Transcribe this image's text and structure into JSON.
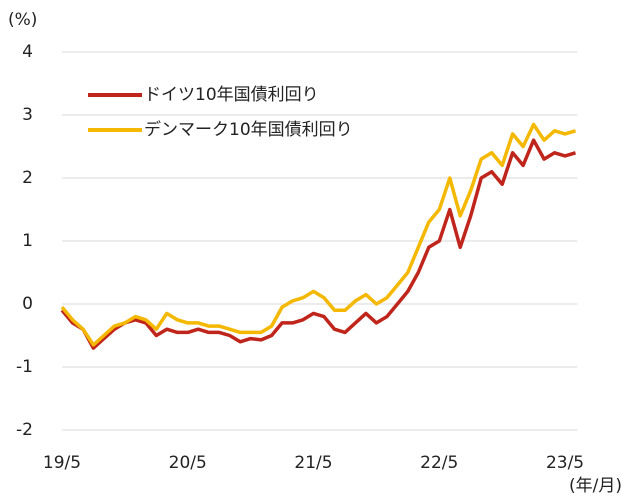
{
  "chart_data": {
    "type": "line",
    "y_label": "(%)",
    "x_label": "(年/月)",
    "categories": [
      "19/5",
      null,
      null,
      null,
      null,
      null,
      null,
      null,
      null,
      null,
      null,
      null,
      "20/5",
      null,
      null,
      null,
      null,
      null,
      null,
      null,
      null,
      null,
      null,
      null,
      "21/5",
      null,
      null,
      null,
      null,
      null,
      null,
      null,
      null,
      null,
      null,
      null,
      "22/5",
      null,
      null,
      null,
      null,
      null,
      null,
      null,
      null,
      null,
      null,
      null,
      "23/5",
      null
    ],
    "series": [
      {
        "name": "ドイツ10年国債利回り",
        "color": "#c0251c",
        "values": [
          -0.1,
          -0.3,
          -0.4,
          -0.7,
          -0.55,
          -0.4,
          -0.3,
          -0.25,
          -0.3,
          -0.5,
          -0.4,
          -0.45,
          -0.45,
          -0.4,
          -0.45,
          -0.45,
          -0.5,
          -0.6,
          -0.55,
          -0.57,
          -0.5,
          -0.3,
          -0.3,
          -0.25,
          -0.15,
          -0.2,
          -0.4,
          -0.45,
          -0.3,
          -0.15,
          -0.3,
          -0.2,
          0,
          0.2,
          0.5,
          0.9,
          1.0,
          1.5,
          0.9,
          1.4,
          2.0,
          2.1,
          1.9,
          2.4,
          2.2,
          2.6,
          2.3,
          2.4,
          2.35,
          2.4
        ]
      },
      {
        "name": "デンマーク10年国債利回り",
        "color": "#f5b800",
        "values": [
          -0.05,
          -0.25,
          -0.4,
          -0.65,
          -0.5,
          -0.35,
          -0.3,
          -0.2,
          -0.25,
          -0.4,
          -0.15,
          -0.25,
          -0.3,
          -0.3,
          -0.35,
          -0.35,
          -0.4,
          -0.45,
          -0.45,
          -0.45,
          -0.35,
          -0.05,
          0.05,
          0.1,
          0.2,
          0.1,
          -0.1,
          -0.1,
          0.05,
          0.15,
          0,
          0.1,
          0.3,
          0.5,
          0.9,
          1.3,
          1.5,
          2.0,
          1.4,
          1.8,
          2.3,
          2.4,
          2.2,
          2.7,
          2.5,
          2.85,
          2.6,
          2.75,
          2.7,
          2.75
        ]
      }
    ],
    "ylim": [
      -2,
      4
    ],
    "yticks": [
      -2,
      -1,
      0,
      1,
      2,
      3,
      4
    ],
    "grid": true,
    "legend": "top-left"
  }
}
